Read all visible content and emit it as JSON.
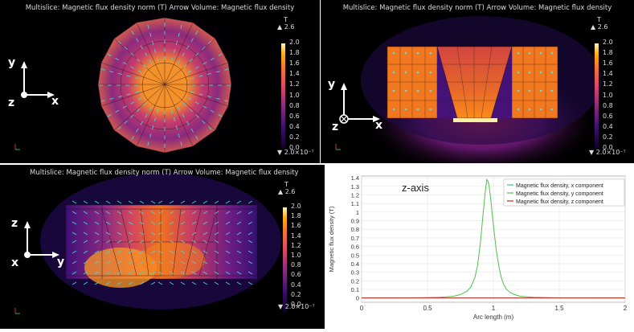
{
  "plots": [
    {
      "title": "Multislice: Magnetic flux density norm (T)  Arrow Volume: Magnetic flux density",
      "axes": [
        "y",
        "z",
        "x"
      ],
      "axis_glyphs": [
        "up-arrow",
        "point-out",
        "right-arrow"
      ],
      "max_label": "▲ 2.6",
      "min_label": "▼ 2.0×10⁻⁷",
      "unit": "T",
      "scale_ticks": [
        "2.0",
        "1.8",
        "1.6",
        "1.4",
        "1.2",
        "1.0",
        "0.8",
        "0.6",
        "0.4",
        "0.2",
        "0.0"
      ]
    },
    {
      "title": "Multislice: Magnetic flux density norm (T)  Arrow Volume: Magnetic flux density",
      "axes": [
        "y",
        "z",
        "x"
      ],
      "axis_glyphs": [
        "up-arrow",
        "point-in",
        "right-arrow"
      ],
      "max_label": "▲ 2.6",
      "min_label": "▼ 2.0×10⁻⁷",
      "unit": "T",
      "scale_ticks": [
        "2.0",
        "1.8",
        "1.6",
        "1.4",
        "1.2",
        "1.0",
        "0.8",
        "0.6",
        "0.4",
        "0.2",
        "0.0"
      ]
    },
    {
      "title": "Multislice: Magnetic flux density norm (T)  Arrow Volume: Magnetic flux density",
      "axes": [
        "z",
        "x",
        "y"
      ],
      "axis_glyphs": [
        "up-arrow",
        "point-out",
        "right-arrow"
      ],
      "max_label": "▲ 2.6",
      "min_label": "▼ 2.0×10⁻⁷",
      "unit": "T",
      "scale_ticks": [
        "2.0",
        "1.8",
        "1.6",
        "1.4",
        "1.2",
        "1.0",
        "0.8",
        "0.6",
        "0.4",
        "0.2",
        "0.0"
      ]
    }
  ],
  "chart_data": {
    "type": "line",
    "annotation": "z-axis",
    "xlabel": "Arc length (m)",
    "ylabel": "Magnetic flux density (T)",
    "xlim": [
      0,
      2
    ],
    "ylim": [
      -0.05,
      1.42
    ],
    "xticks": [
      "0",
      "0.5",
      "1",
      "1.5",
      "2"
    ],
    "yticks": [
      "0",
      "0.1",
      "0.2",
      "0.3",
      "0.4",
      "0.5",
      "0.6",
      "0.7",
      "0.8",
      "0.9",
      "1",
      "1.1",
      "1.2",
      "1.3",
      "1.4"
    ],
    "x": [
      0,
      0.2,
      0.4,
      0.6,
      0.7,
      0.75,
      0.8,
      0.83,
      0.86,
      0.88,
      0.9,
      0.92,
      0.94,
      0.95,
      0.96,
      0.97,
      0.98,
      1.0,
      1.02,
      1.04,
      1.06,
      1.08,
      1.1,
      1.13,
      1.16,
      1.2,
      1.3,
      1.5,
      2.0
    ],
    "series": [
      {
        "name": "Magnetic flux density, x component",
        "color": "#4db6ac",
        "values": [
          0,
          0,
          0,
          0,
          0,
          0,
          0,
          0,
          0,
          0,
          0,
          0,
          0,
          0,
          0,
          0,
          0,
          0,
          0,
          0,
          0,
          0,
          0,
          0,
          0,
          0,
          0,
          0,
          0
        ]
      },
      {
        "name": "Magnetic flux density, y component",
        "color": "#4fc04a",
        "values": [
          0.0,
          0.0,
          0.002,
          0.008,
          0.02,
          0.04,
          0.08,
          0.13,
          0.24,
          0.38,
          0.62,
          0.95,
          1.26,
          1.38,
          1.36,
          1.28,
          1.15,
          0.85,
          0.58,
          0.38,
          0.24,
          0.15,
          0.1,
          0.06,
          0.04,
          0.02,
          0.008,
          0.002,
          0.0
        ]
      },
      {
        "name": "Magnetic flux density, z component",
        "color": "#c62828",
        "values": [
          0,
          0,
          0,
          0,
          0,
          0,
          0,
          0,
          0,
          0,
          0,
          0,
          0,
          0,
          0,
          0,
          0,
          0,
          0,
          0,
          0,
          0,
          0,
          0,
          0,
          0,
          0,
          0,
          0
        ]
      }
    ]
  }
}
